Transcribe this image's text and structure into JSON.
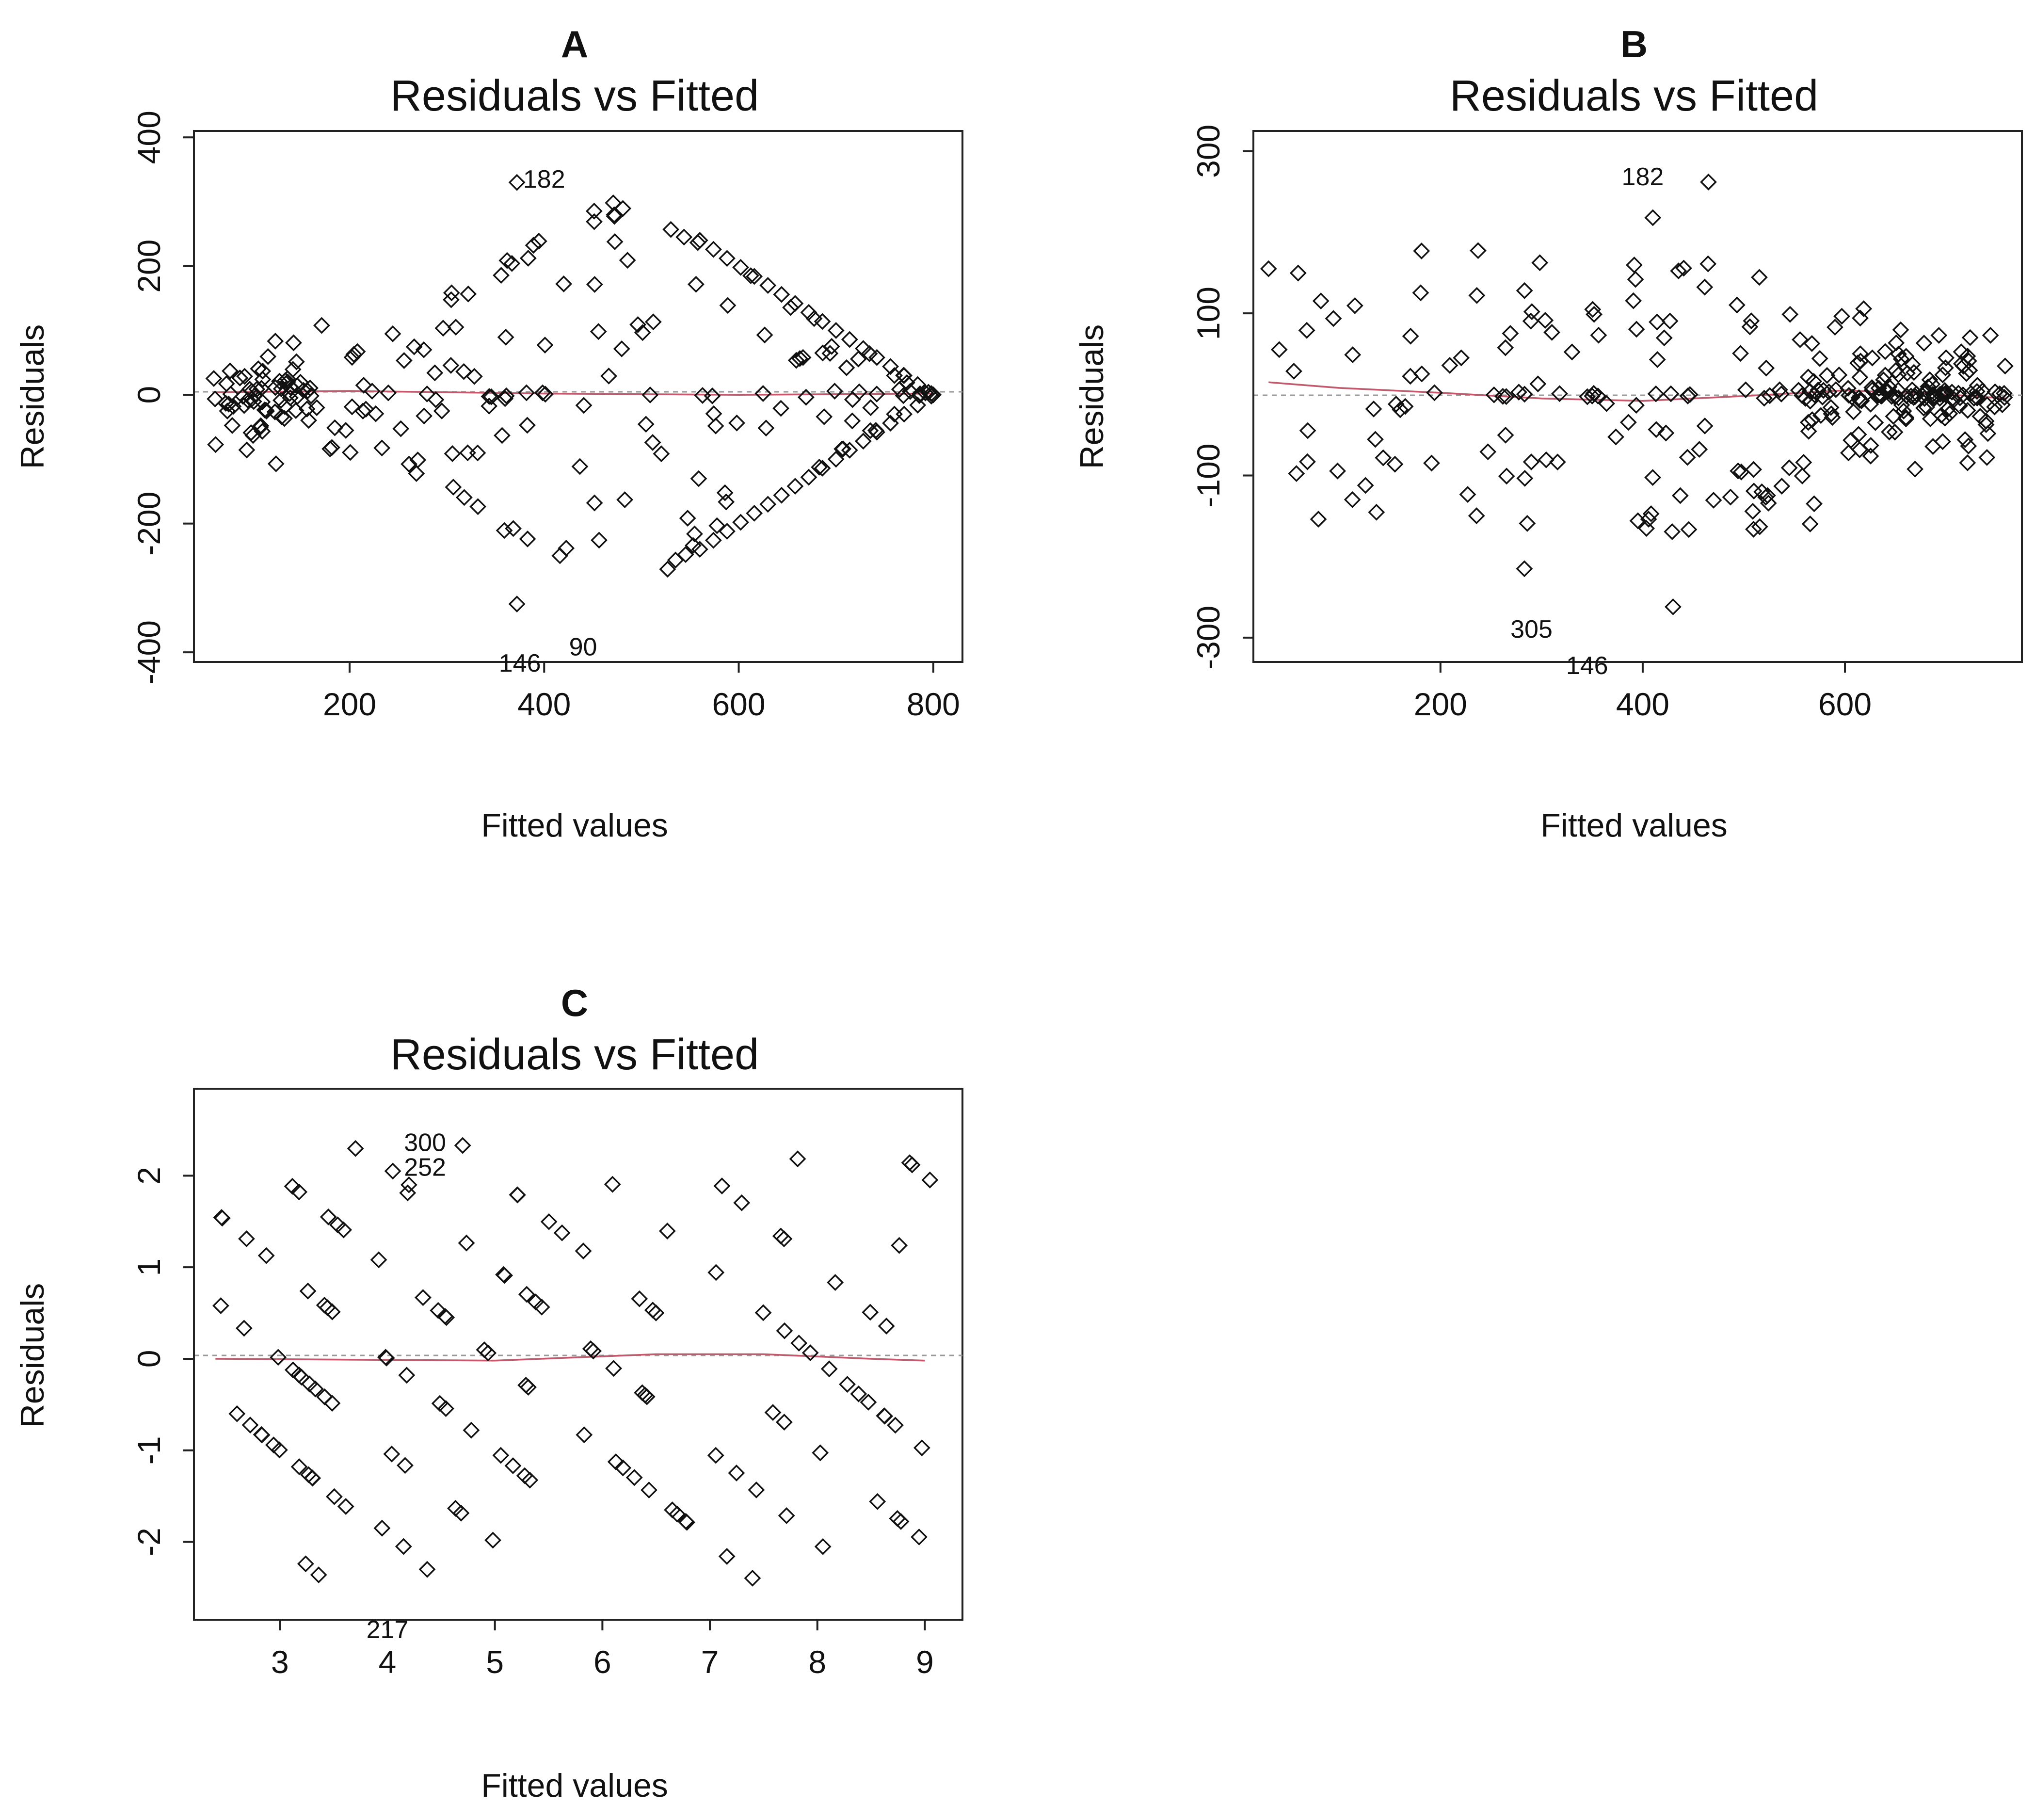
{
  "chart_data": [
    {
      "type": "scatter",
      "panel_letter": "A",
      "title": "Residuals vs Fitted",
      "xlabel": "Fitted values",
      "ylabel": "Residuals",
      "xlim": [
        40,
        830
      ],
      "ylim": [
        -415,
        410
      ],
      "xticks": [
        200,
        400,
        600,
        800
      ],
      "yticks": [
        -400,
        -200,
        0,
        200,
        400
      ],
      "outlier_labels": [
        {
          "text": "182",
          "x": 400,
          "y": 322
        },
        {
          "text": "90",
          "x": 440,
          "y": -405
        },
        {
          "text": "146",
          "x": 375,
          "y": -430
        }
      ],
      "smooth_line": [
        [
          60,
          4
        ],
        [
          200,
          6
        ],
        [
          400,
          2
        ],
        [
          600,
          0
        ],
        [
          800,
          2
        ]
      ],
      "zero_line": true
    },
    {
      "type": "scatter",
      "panel_letter": "B",
      "title": "Residuals vs Fitted",
      "xlabel": "Fitted values",
      "ylabel": "Residuals",
      "xlim": [
        15,
        775
      ],
      "ylim": [
        -330,
        325
      ],
      "xticks": [
        200,
        400,
        600
      ],
      "yticks": [
        -300,
        -100,
        100,
        300
      ],
      "outlier_labels": [
        {
          "text": "182",
          "x": 400,
          "y": 258
        },
        {
          "text": "305",
          "x": 290,
          "y": -300
        },
        {
          "text": "146",
          "x": 345,
          "y": -345
        }
      ],
      "smooth_line": [
        [
          30,
          15
        ],
        [
          100,
          8
        ],
        [
          200,
          2
        ],
        [
          300,
          -5
        ],
        [
          400,
          -8
        ],
        [
          500,
          -2
        ],
        [
          600,
          5
        ],
        [
          700,
          0
        ],
        [
          760,
          -5
        ]
      ],
      "zero_line": true
    },
    {
      "type": "scatter",
      "panel_letter": "C",
      "title": "Residuals vs Fitted",
      "xlabel": "Fitted values",
      "ylabel": "Residuals",
      "xlim": [
        2.2,
        9.35
      ],
      "ylim": [
        -2.85,
        2.95
      ],
      "xticks": [
        3,
        4,
        5,
        6,
        7,
        8,
        9
      ],
      "yticks": [
        -2,
        -1,
        0,
        1,
        2
      ],
      "outlier_labels": [
        {
          "text": "300",
          "x": 4.35,
          "y": 2.27
        },
        {
          "text": "252",
          "x": 4.35,
          "y": 2.0
        },
        {
          "text": "217",
          "x": 4.0,
          "y": -3.05
        }
      ],
      "smooth_line": [
        [
          2.4,
          0
        ],
        [
          5,
          -0.02
        ],
        [
          6.5,
          0.05
        ],
        [
          7.5,
          0.05
        ],
        [
          8.5,
          0.0
        ],
        [
          9.0,
          -0.02
        ]
      ],
      "zero_line": true
    }
  ]
}
